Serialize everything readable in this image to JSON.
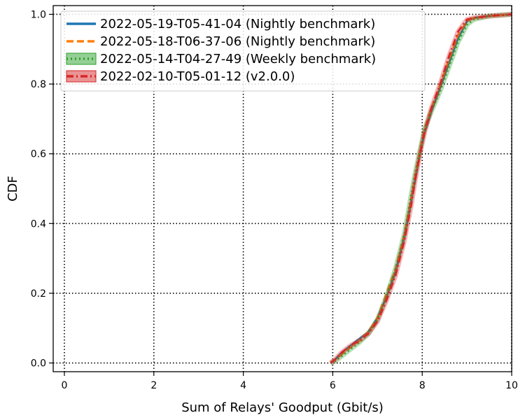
{
  "chart_data": {
    "type": "line",
    "xlabel": "Sum of Relays' Goodput (Gbit/s)",
    "ylabel": "CDF",
    "xlim": [
      -0.25,
      10
    ],
    "ylim": [
      -0.025,
      1.025
    ],
    "xticks": [
      0,
      2,
      4,
      6,
      8,
      10
    ],
    "yticks": [
      0.0,
      0.2,
      0.4,
      0.6,
      0.8,
      1.0
    ],
    "xtick_labels": [
      "0",
      "2",
      "4",
      "6",
      "8",
      "10"
    ],
    "ytick_labels": [
      "0.0",
      "0.2",
      "0.4",
      "0.6",
      "0.8",
      "1.0"
    ],
    "grid": true,
    "legend_position": "top-left",
    "series": [
      {
        "name": "2022-05-19-T05-41-04 (Nightly benchmark)",
        "color": "#1f77b4",
        "style": "solid",
        "band": false,
        "x": [
          5.95,
          6.05,
          6.2,
          6.4,
          6.6,
          6.8,
          7.0,
          7.2,
          7.4,
          7.6,
          7.75,
          7.85,
          7.95,
          8.05,
          8.2,
          8.4,
          8.6,
          8.8,
          9.0,
          9.15,
          9.5,
          10.0
        ],
        "y": [
          0.0,
          0.01,
          0.03,
          0.05,
          0.07,
          0.09,
          0.13,
          0.19,
          0.26,
          0.36,
          0.46,
          0.53,
          0.6,
          0.66,
          0.72,
          0.79,
          0.86,
          0.93,
          0.98,
          0.99,
          0.995,
          1.0
        ]
      },
      {
        "name": "2022-05-18-T06-37-06 (Nightly benchmark)",
        "color": "#ff7f0e",
        "style": "dashed",
        "band": false,
        "x": [
          5.95,
          6.05,
          6.2,
          6.4,
          6.6,
          6.8,
          7.0,
          7.2,
          7.4,
          7.6,
          7.75,
          7.85,
          7.95,
          8.05,
          8.2,
          8.4,
          8.6,
          8.8,
          9.0,
          9.15,
          9.5,
          10.0
        ],
        "y": [
          0.0,
          0.01,
          0.025,
          0.045,
          0.065,
          0.09,
          0.13,
          0.2,
          0.27,
          0.37,
          0.47,
          0.54,
          0.61,
          0.67,
          0.73,
          0.8,
          0.87,
          0.94,
          0.98,
          0.99,
          0.995,
          1.0
        ]
      },
      {
        "name": "2022-05-14-T04-27-49 (Weekly benchmark)",
        "color": "#2ca02c",
        "style": "dotted",
        "band": true,
        "x": [
          5.95,
          6.05,
          6.2,
          6.4,
          6.6,
          6.8,
          7.0,
          7.2,
          7.4,
          7.6,
          7.75,
          7.85,
          7.95,
          8.05,
          8.2,
          8.4,
          8.6,
          8.8,
          9.0,
          9.15,
          9.5,
          10.0
        ],
        "y": [
          0.0,
          0.005,
          0.02,
          0.04,
          0.06,
          0.085,
          0.125,
          0.19,
          0.27,
          0.37,
          0.48,
          0.55,
          0.61,
          0.67,
          0.72,
          0.78,
          0.85,
          0.92,
          0.97,
          0.985,
          0.995,
          1.0
        ]
      },
      {
        "name": "2022-02-10-T05-01-12 (v2.0.0)",
        "color": "#d62728",
        "style": "dashdot",
        "band": true,
        "x": [
          5.95,
          6.05,
          6.2,
          6.4,
          6.6,
          6.8,
          7.0,
          7.2,
          7.4,
          7.6,
          7.75,
          7.85,
          7.95,
          8.05,
          8.2,
          8.4,
          8.6,
          8.8,
          9.0,
          9.15,
          9.5,
          10.0
        ],
        "y": [
          0.0,
          0.01,
          0.03,
          0.05,
          0.065,
          0.085,
          0.12,
          0.18,
          0.25,
          0.35,
          0.45,
          0.53,
          0.6,
          0.66,
          0.73,
          0.8,
          0.88,
          0.95,
          0.985,
          0.99,
          0.995,
          1.0
        ]
      }
    ]
  }
}
